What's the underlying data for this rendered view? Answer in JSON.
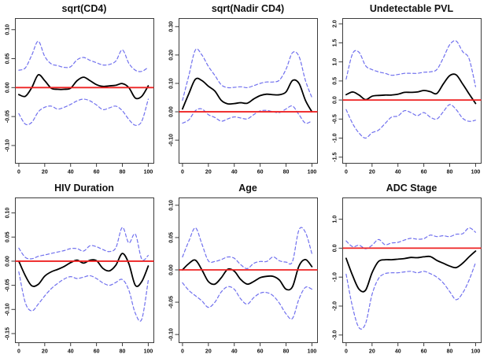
{
  "figure": {
    "background": "#ffffff",
    "style": {
      "estimate_color": "#000000",
      "ci_color": "#7070ee",
      "reference_color": "#ee2222",
      "box_color": "#3c3c3c",
      "tick_label_color": "#111111"
    }
  },
  "chart_data": [
    {
      "type": "line",
      "title": "sqrt(CD4)",
      "xlim": [
        -3,
        104
      ],
      "ylim": [
        -0.13,
        0.12
      ],
      "x_ticks": [
        0,
        20,
        40,
        60,
        80,
        100
      ],
      "y_tick_values": [
        0.1,
        0.05,
        0.0,
        -0.05,
        -0.1
      ],
      "y_tick_labels": [
        "0.10",
        "0.05",
        "0.00",
        "-0.05",
        "-0.10"
      ],
      "reference_line_y": 0,
      "grid": false,
      "legend": "none",
      "x": [
        0,
        5,
        10,
        15,
        20,
        25,
        30,
        35,
        40,
        45,
        50,
        55,
        60,
        65,
        70,
        75,
        80,
        85,
        90,
        95,
        100
      ],
      "series": [
        {
          "name": "estimate",
          "color": "#000000",
          "width": 1.8,
          "dash": "",
          "values": [
            -0.012,
            -0.015,
            0.0,
            0.022,
            0.012,
            -0.001,
            -0.003,
            -0.003,
            -0.001,
            0.012,
            0.018,
            0.012,
            0.005,
            0.002,
            0.003,
            0.004,
            0.007,
            0.0,
            -0.018,
            -0.015,
            0.003
          ]
        },
        {
          "name": "upper-ci",
          "color": "#7070ee",
          "width": 1.2,
          "dash": "4 3",
          "values": [
            0.03,
            0.034,
            0.056,
            0.08,
            0.054,
            0.041,
            0.038,
            0.035,
            0.036,
            0.048,
            0.052,
            0.047,
            0.043,
            0.039,
            0.04,
            0.046,
            0.065,
            0.042,
            0.03,
            0.028,
            0.035
          ]
        },
        {
          "name": "lower-ci",
          "color": "#7070ee",
          "width": 1.2,
          "dash": "4 3",
          "values": [
            -0.045,
            -0.063,
            -0.06,
            -0.042,
            -0.034,
            -0.032,
            -0.037,
            -0.034,
            -0.029,
            -0.023,
            -0.02,
            -0.023,
            -0.03,
            -0.038,
            -0.035,
            -0.032,
            -0.04,
            -0.055,
            -0.065,
            -0.058,
            -0.02
          ]
        }
      ]
    },
    {
      "type": "line",
      "title": "sqrt(Nadir CD4)",
      "xlim": [
        -3,
        104
      ],
      "ylim": [
        -0.18,
        0.33
      ],
      "x_ticks": [
        0,
        20,
        40,
        60,
        80,
        100
      ],
      "y_tick_values": [
        0.3,
        0.2,
        0.1,
        0.0,
        -0.1
      ],
      "y_tick_labels": [
        "0.30",
        "0.20",
        "0.10",
        "0.00",
        "-0.10"
      ],
      "reference_line_y": 0,
      "grid": false,
      "legend": "none",
      "x": [
        0,
        5,
        10,
        15,
        20,
        25,
        30,
        35,
        40,
        45,
        50,
        55,
        60,
        65,
        70,
        75,
        80,
        85,
        90,
        95,
        100
      ],
      "series": [
        {
          "name": "estimate",
          "color": "#000000",
          "width": 1.8,
          "dash": "",
          "values": [
            0.01,
            0.065,
            0.115,
            0.11,
            0.09,
            0.073,
            0.04,
            0.028,
            0.029,
            0.032,
            0.03,
            0.045,
            0.057,
            0.062,
            0.06,
            0.06,
            0.07,
            0.11,
            0.1,
            0.04,
            0.0
          ]
        },
        {
          "name": "upper-ci",
          "color": "#7070ee",
          "width": 1.2,
          "dash": "4 3",
          "values": [
            0.04,
            0.13,
            0.218,
            0.2,
            0.16,
            0.128,
            0.095,
            0.085,
            0.086,
            0.088,
            0.085,
            0.092,
            0.1,
            0.105,
            0.105,
            0.112,
            0.15,
            0.208,
            0.195,
            0.11,
            0.05
          ]
        },
        {
          "name": "lower-ci",
          "color": "#7070ee",
          "width": 1.2,
          "dash": "4 3",
          "values": [
            -0.04,
            -0.028,
            0.004,
            0.01,
            -0.01,
            -0.02,
            -0.033,
            -0.025,
            -0.018,
            -0.022,
            -0.025,
            -0.01,
            0.003,
            0.005,
            0.0,
            -0.003,
            0.01,
            0.02,
            -0.01,
            -0.04,
            -0.032
          ]
        }
      ]
    },
    {
      "type": "line",
      "title": "Undetectable PVL",
      "xlim": [
        -3,
        104
      ],
      "ylim": [
        -1.65,
        2.15
      ],
      "x_ticks": [
        0,
        20,
        40,
        60,
        80,
        100
      ],
      "y_tick_values": [
        2.0,
        1.5,
        1.0,
        0.5,
        0.0,
        -0.5,
        -1.0,
        -1.5
      ],
      "y_tick_labels": [
        "2.0",
        "1.5",
        "1.0",
        "0.5",
        "0.0",
        "-0.5",
        "-1.0",
        "-1.5"
      ],
      "reference_line_y": 0,
      "grid": false,
      "legend": "none",
      "x": [
        0,
        5,
        10,
        15,
        20,
        25,
        30,
        35,
        40,
        45,
        50,
        55,
        60,
        65,
        70,
        75,
        80,
        85,
        90,
        95,
        100
      ],
      "series": [
        {
          "name": "estimate",
          "color": "#000000",
          "width": 1.8,
          "dash": "",
          "values": [
            0.14,
            0.21,
            0.13,
            0.01,
            0.1,
            0.12,
            0.13,
            0.13,
            0.15,
            0.2,
            0.2,
            0.21,
            0.25,
            0.22,
            0.17,
            0.42,
            0.64,
            0.66,
            0.42,
            0.16,
            -0.09
          ]
        },
        {
          "name": "upper-ci",
          "color": "#7070ee",
          "width": 1.2,
          "dash": "4 3",
          "values": [
            0.55,
            1.22,
            1.25,
            0.9,
            0.8,
            0.74,
            0.7,
            0.65,
            0.67,
            0.7,
            0.7,
            0.7,
            0.73,
            0.74,
            0.8,
            1.1,
            1.45,
            1.55,
            1.27,
            1.08,
            0.35
          ]
        },
        {
          "name": "lower-ci",
          "color": "#7070ee",
          "width": 1.2,
          "dash": "4 3",
          "values": [
            -0.25,
            -0.62,
            -0.87,
            -1.0,
            -0.86,
            -0.79,
            -0.62,
            -0.45,
            -0.42,
            -0.28,
            -0.33,
            -0.41,
            -0.33,
            -0.45,
            -0.5,
            -0.31,
            -0.12,
            -0.25,
            -0.48,
            -0.56,
            -0.53
          ]
        }
      ]
    },
    {
      "type": "line",
      "title": "HIV Duration",
      "xlim": [
        -3,
        104
      ],
      "ylim": [
        -0.168,
        0.132
      ],
      "x_ticks": [
        0,
        20,
        40,
        60,
        80,
        100
      ],
      "y_tick_values": [
        0.1,
        0.05,
        0.0,
        -0.05,
        -0.1,
        -0.15
      ],
      "y_tick_labels": [
        "0.10",
        "0.05",
        "0.00",
        "-0.05",
        "-0.10",
        "-0.15"
      ],
      "reference_line_y": 0,
      "grid": false,
      "legend": "none",
      "x": [
        0,
        5,
        10,
        15,
        20,
        25,
        30,
        35,
        40,
        45,
        50,
        55,
        60,
        65,
        70,
        75,
        80,
        85,
        90,
        95,
        100
      ],
      "series": [
        {
          "name": "estimate",
          "color": "#000000",
          "width": 1.8,
          "dash": "",
          "values": [
            0.0,
            -0.03,
            -0.051,
            -0.048,
            -0.031,
            -0.022,
            -0.017,
            -0.011,
            -0.003,
            0.002,
            -0.004,
            0.002,
            0.001,
            -0.015,
            -0.02,
            -0.008,
            0.016,
            -0.005,
            -0.05,
            -0.042,
            -0.01
          ]
        },
        {
          "name": "upper-ci",
          "color": "#7070ee",
          "width": 1.2,
          "dash": "4 3",
          "values": [
            0.027,
            0.008,
            0.005,
            0.01,
            0.013,
            0.016,
            0.019,
            0.022,
            0.026,
            0.026,
            0.021,
            0.032,
            0.03,
            0.024,
            0.02,
            0.028,
            0.07,
            0.038,
            0.056,
            0.004,
            0.012
          ]
        },
        {
          "name": "lower-ci",
          "color": "#7070ee",
          "width": 1.2,
          "dash": "4 3",
          "values": [
            -0.022,
            -0.086,
            -0.103,
            -0.089,
            -0.072,
            -0.057,
            -0.046,
            -0.037,
            -0.032,
            -0.036,
            -0.033,
            -0.03,
            -0.036,
            -0.045,
            -0.05,
            -0.044,
            -0.038,
            -0.06,
            -0.108,
            -0.12,
            -0.04
          ]
        }
      ]
    },
    {
      "type": "line",
      "title": "Age",
      "xlim": [
        -3,
        104
      ],
      "ylim": [
        -0.112,
        0.112
      ],
      "x_ticks": [
        0,
        20,
        40,
        60,
        80,
        100
      ],
      "y_tick_values": [
        0.1,
        0.05,
        0.0,
        -0.05,
        -0.1
      ],
      "y_tick_labels": [
        "0.10",
        "0.05",
        "0.00",
        "-0.05",
        "-0.10"
      ],
      "reference_line_y": 0,
      "grid": false,
      "legend": "none",
      "x": [
        0,
        5,
        10,
        15,
        20,
        25,
        30,
        35,
        40,
        45,
        50,
        55,
        60,
        65,
        70,
        75,
        80,
        85,
        90,
        95,
        100
      ],
      "series": [
        {
          "name": "estimate",
          "color": "#000000",
          "width": 1.8,
          "dash": "",
          "values": [
            0.0,
            0.01,
            0.015,
            0.0,
            -0.018,
            -0.022,
            -0.012,
            0.001,
            -0.002,
            -0.015,
            -0.022,
            -0.018,
            -0.012,
            -0.01,
            -0.01,
            -0.016,
            -0.03,
            -0.026,
            0.006,
            0.016,
            0.005
          ]
        },
        {
          "name": "upper-ci",
          "color": "#7070ee",
          "width": 1.2,
          "dash": "4 3",
          "values": [
            0.02,
            0.045,
            0.065,
            0.04,
            0.014,
            0.013,
            0.016,
            0.02,
            0.018,
            0.008,
            0.002,
            0.01,
            0.013,
            0.013,
            0.02,
            0.014,
            0.012,
            0.013,
            0.062,
            0.058,
            0.025
          ]
        },
        {
          "name": "lower-ci",
          "color": "#7070ee",
          "width": 1.2,
          "dash": "4 3",
          "values": [
            -0.02,
            -0.032,
            -0.04,
            -0.048,
            -0.058,
            -0.05,
            -0.034,
            -0.026,
            -0.03,
            -0.045,
            -0.053,
            -0.043,
            -0.036,
            -0.035,
            -0.04,
            -0.052,
            -0.068,
            -0.075,
            -0.045,
            -0.027,
            -0.03
          ]
        }
      ]
    },
    {
      "type": "line",
      "title": "ADC Stage",
      "xlim": [
        -3,
        104
      ],
      "ylim": [
        -3.25,
        1.75
      ],
      "x_ticks": [
        0,
        20,
        40,
        60,
        80,
        100
      ],
      "y_tick_values": [
        1.0,
        0.0,
        -1.0,
        -2.0,
        -3.0
      ],
      "y_tick_labels": [
        "1.0",
        "0.0",
        "-1.0",
        "-2.0",
        "-3.0"
      ],
      "reference_line_y": 0,
      "grid": false,
      "legend": "none",
      "x": [
        0,
        5,
        10,
        15,
        20,
        25,
        30,
        35,
        40,
        45,
        50,
        55,
        60,
        65,
        70,
        75,
        80,
        85,
        90,
        95,
        100
      ],
      "series": [
        {
          "name": "estimate",
          "color": "#000000",
          "width": 1.8,
          "dash": "",
          "values": [
            -0.35,
            -0.95,
            -1.42,
            -1.45,
            -0.85,
            -0.46,
            -0.4,
            -0.4,
            -0.38,
            -0.36,
            -0.32,
            -0.33,
            -0.3,
            -0.29,
            -0.42,
            -0.52,
            -0.62,
            -0.67,
            -0.52,
            -0.3,
            -0.1
          ]
        },
        {
          "name": "upper-ci",
          "color": "#7070ee",
          "width": 1.2,
          "dash": "4 3",
          "values": [
            0.25,
            0.05,
            0.1,
            -0.02,
            0.1,
            0.3,
            0.12,
            0.18,
            0.2,
            0.28,
            0.34,
            0.31,
            0.33,
            0.45,
            0.4,
            0.43,
            0.4,
            0.48,
            0.5,
            0.7,
            0.55
          ]
        },
        {
          "name": "lower-ci",
          "color": "#7070ee",
          "width": 1.2,
          "dash": "4 3",
          "values": [
            -0.9,
            -2.05,
            -2.75,
            -2.6,
            -1.6,
            -1.05,
            -0.88,
            -0.85,
            -0.85,
            -0.82,
            -0.8,
            -0.85,
            -0.8,
            -0.88,
            -1.0,
            -1.2,
            -1.5,
            -1.78,
            -1.55,
            -1.1,
            -0.5
          ]
        }
      ]
    }
  ]
}
